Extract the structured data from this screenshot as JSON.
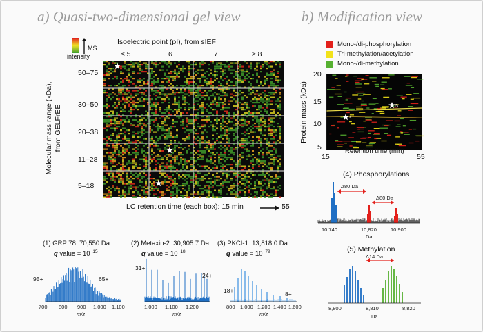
{
  "panel_a": {
    "title": "a) Quasi-two-dimensional gel view",
    "legend_label_1": "MS",
    "legend_label_2": "intensity",
    "top_axis_label": "Isoelectric point (pI), from sIEF",
    "columns": [
      "≤ 5",
      "6",
      "7",
      "≥ 8"
    ],
    "y_axis_label_1": "Molecular mass range (kDa),",
    "y_axis_label_2": "from GELFrEE",
    "rows": [
      "50–75",
      "30–50",
      "20–38",
      "11–28",
      "5–18"
    ],
    "bottom_label": "LC retention time (each box): 15 min",
    "bottom_end": "55",
    "spectra": [
      {
        "title": "(1) GRP 78: 70,550 Da",
        "q_prefix": "q",
        "q_text": " value = 10",
        "q_exp": "−15",
        "ticks": [
          "700",
          "800",
          "900",
          "1,000",
          "1,100"
        ],
        "xlabel": "m/z",
        "annotations": [
          "95+",
          "65+"
        ]
      },
      {
        "title": "(2) Metaxin-2: 30,905.7 Da",
        "q_prefix": "q",
        "q_text": " value = 10",
        "q_exp": "−18",
        "ticks": [
          "1,000",
          "1,100",
          "1,200"
        ],
        "xlabel": "m/z",
        "annotations": [
          "31+",
          "24+"
        ]
      },
      {
        "title": "(3) PKCI-1: 13,818.0 Da",
        "q_prefix": "q",
        "q_text": " value = 10",
        "q_exp": "−79",
        "ticks": [
          "800",
          "1,000",
          "1,200",
          "1,400",
          "1,600"
        ],
        "xlabel": "m/z",
        "annotations": [
          "18+",
          "8+"
        ]
      }
    ]
  },
  "panel_b": {
    "title": "b) Modification view",
    "legend": [
      {
        "label": "Mono-/di-phosphorylation",
        "color": "#e3201b"
      },
      {
        "label": "Tri-methylation/acetylation",
        "color": "#f2e21a"
      },
      {
        "label": "Mono-/di-methylation",
        "color": "#56b030"
      }
    ],
    "y_axis_label": "Protein mass (kDa)",
    "x_axis_label": "Retention time (min)",
    "yticks": [
      "20",
      "15",
      "10",
      "5"
    ],
    "xticks": [
      "15",
      "55"
    ],
    "markers": [
      "4",
      "5"
    ],
    "phos": {
      "title": "(4) Phosphorylations",
      "delta1": "Δ80 Da",
      "delta2": "Δ80 Da",
      "ticks": [
        "10,740",
        "10,820",
        "10,900"
      ],
      "xlabel": "Da"
    },
    "meth": {
      "title": "(5) Methylation",
      "delta": "Δ14 Da",
      "ticks": [
        "8,800",
        "8,810",
        "8,820"
      ],
      "xlabel": "Da"
    }
  }
}
